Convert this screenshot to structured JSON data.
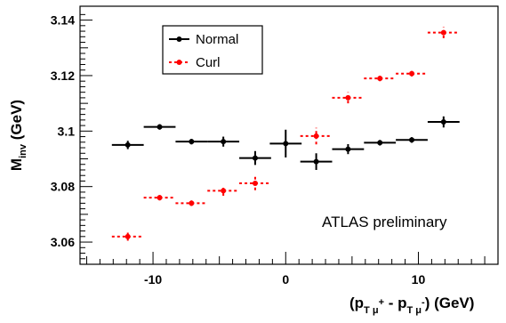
{
  "chart_data": {
    "type": "scatter",
    "annotation": "ATLAS preliminary",
    "xlim": [
      -15.5,
      16
    ],
    "ylim": [
      3.052,
      3.145
    ],
    "x_ticks": [
      "-10",
      "0",
      "10"
    ],
    "y_ticks": [
      "3.06",
      "3.08",
      "3.1",
      "3.12",
      "3.14"
    ],
    "x_tick_values": [
      -10,
      0,
      10
    ],
    "y_tick_values": [
      3.06,
      3.08,
      3.1,
      3.12,
      3.14
    ],
    "legend_position": "top-left",
    "series": [
      {
        "name": "Normal",
        "color": "#000000",
        "points": [
          {
            "x": -11.9,
            "xerr": 1.2,
            "y": 3.095,
            "yerr": 0.0015
          },
          {
            "x": -9.5,
            "xerr": 1.2,
            "y": 3.1015,
            "yerr": 0.001
          },
          {
            "x": -7.1,
            "xerr": 1.2,
            "y": 3.0962,
            "yerr": 0.001
          },
          {
            "x": -4.7,
            "xerr": 1.2,
            "y": 3.0962,
            "yerr": 0.0018
          },
          {
            "x": -2.3,
            "xerr": 1.2,
            "y": 3.0903,
            "yerr": 0.0025
          },
          {
            "x": 0.0,
            "xerr": 1.2,
            "y": 3.0955,
            "yerr": 0.005
          },
          {
            "x": 2.3,
            "xerr": 1.2,
            "y": 3.089,
            "yerr": 0.003
          },
          {
            "x": 4.7,
            "xerr": 1.2,
            "y": 3.0935,
            "yerr": 0.0018
          },
          {
            "x": 7.1,
            "xerr": 1.2,
            "y": 3.0958,
            "yerr": 0.001
          },
          {
            "x": 9.5,
            "xerr": 1.2,
            "y": 3.0968,
            "yerr": 0.001
          },
          {
            "x": 11.9,
            "xerr": 1.2,
            "y": 3.1033,
            "yerr": 0.002
          }
        ]
      },
      {
        "name": "Curl",
        "color": "#ff0000",
        "points": [
          {
            "x": -11.9,
            "xerr": 1.2,
            "y": 3.062,
            "yerr": 0.0015
          },
          {
            "x": -9.5,
            "xerr": 1.2,
            "y": 3.076,
            "yerr": 0.001
          },
          {
            "x": -7.1,
            "xerr": 1.2,
            "y": 3.074,
            "yerr": 0.001
          },
          {
            "x": -4.7,
            "xerr": 1.2,
            "y": 3.0785,
            "yerr": 0.0018
          },
          {
            "x": -2.3,
            "xerr": 1.2,
            "y": 3.0812,
            "yerr": 0.0025
          },
          {
            "x": 2.3,
            "xerr": 1.2,
            "y": 3.0982,
            "yerr": 0.003
          },
          {
            "x": 4.7,
            "xerr": 1.2,
            "y": 3.112,
            "yerr": 0.002
          },
          {
            "x": 7.1,
            "xerr": 1.2,
            "y": 3.119,
            "yerr": 0.001
          },
          {
            "x": 9.5,
            "xerr": 1.2,
            "y": 3.1207,
            "yerr": 0.001
          },
          {
            "x": 11.9,
            "xerr": 1.2,
            "y": 3.1355,
            "yerr": 0.002
          }
        ]
      }
    ]
  }
}
